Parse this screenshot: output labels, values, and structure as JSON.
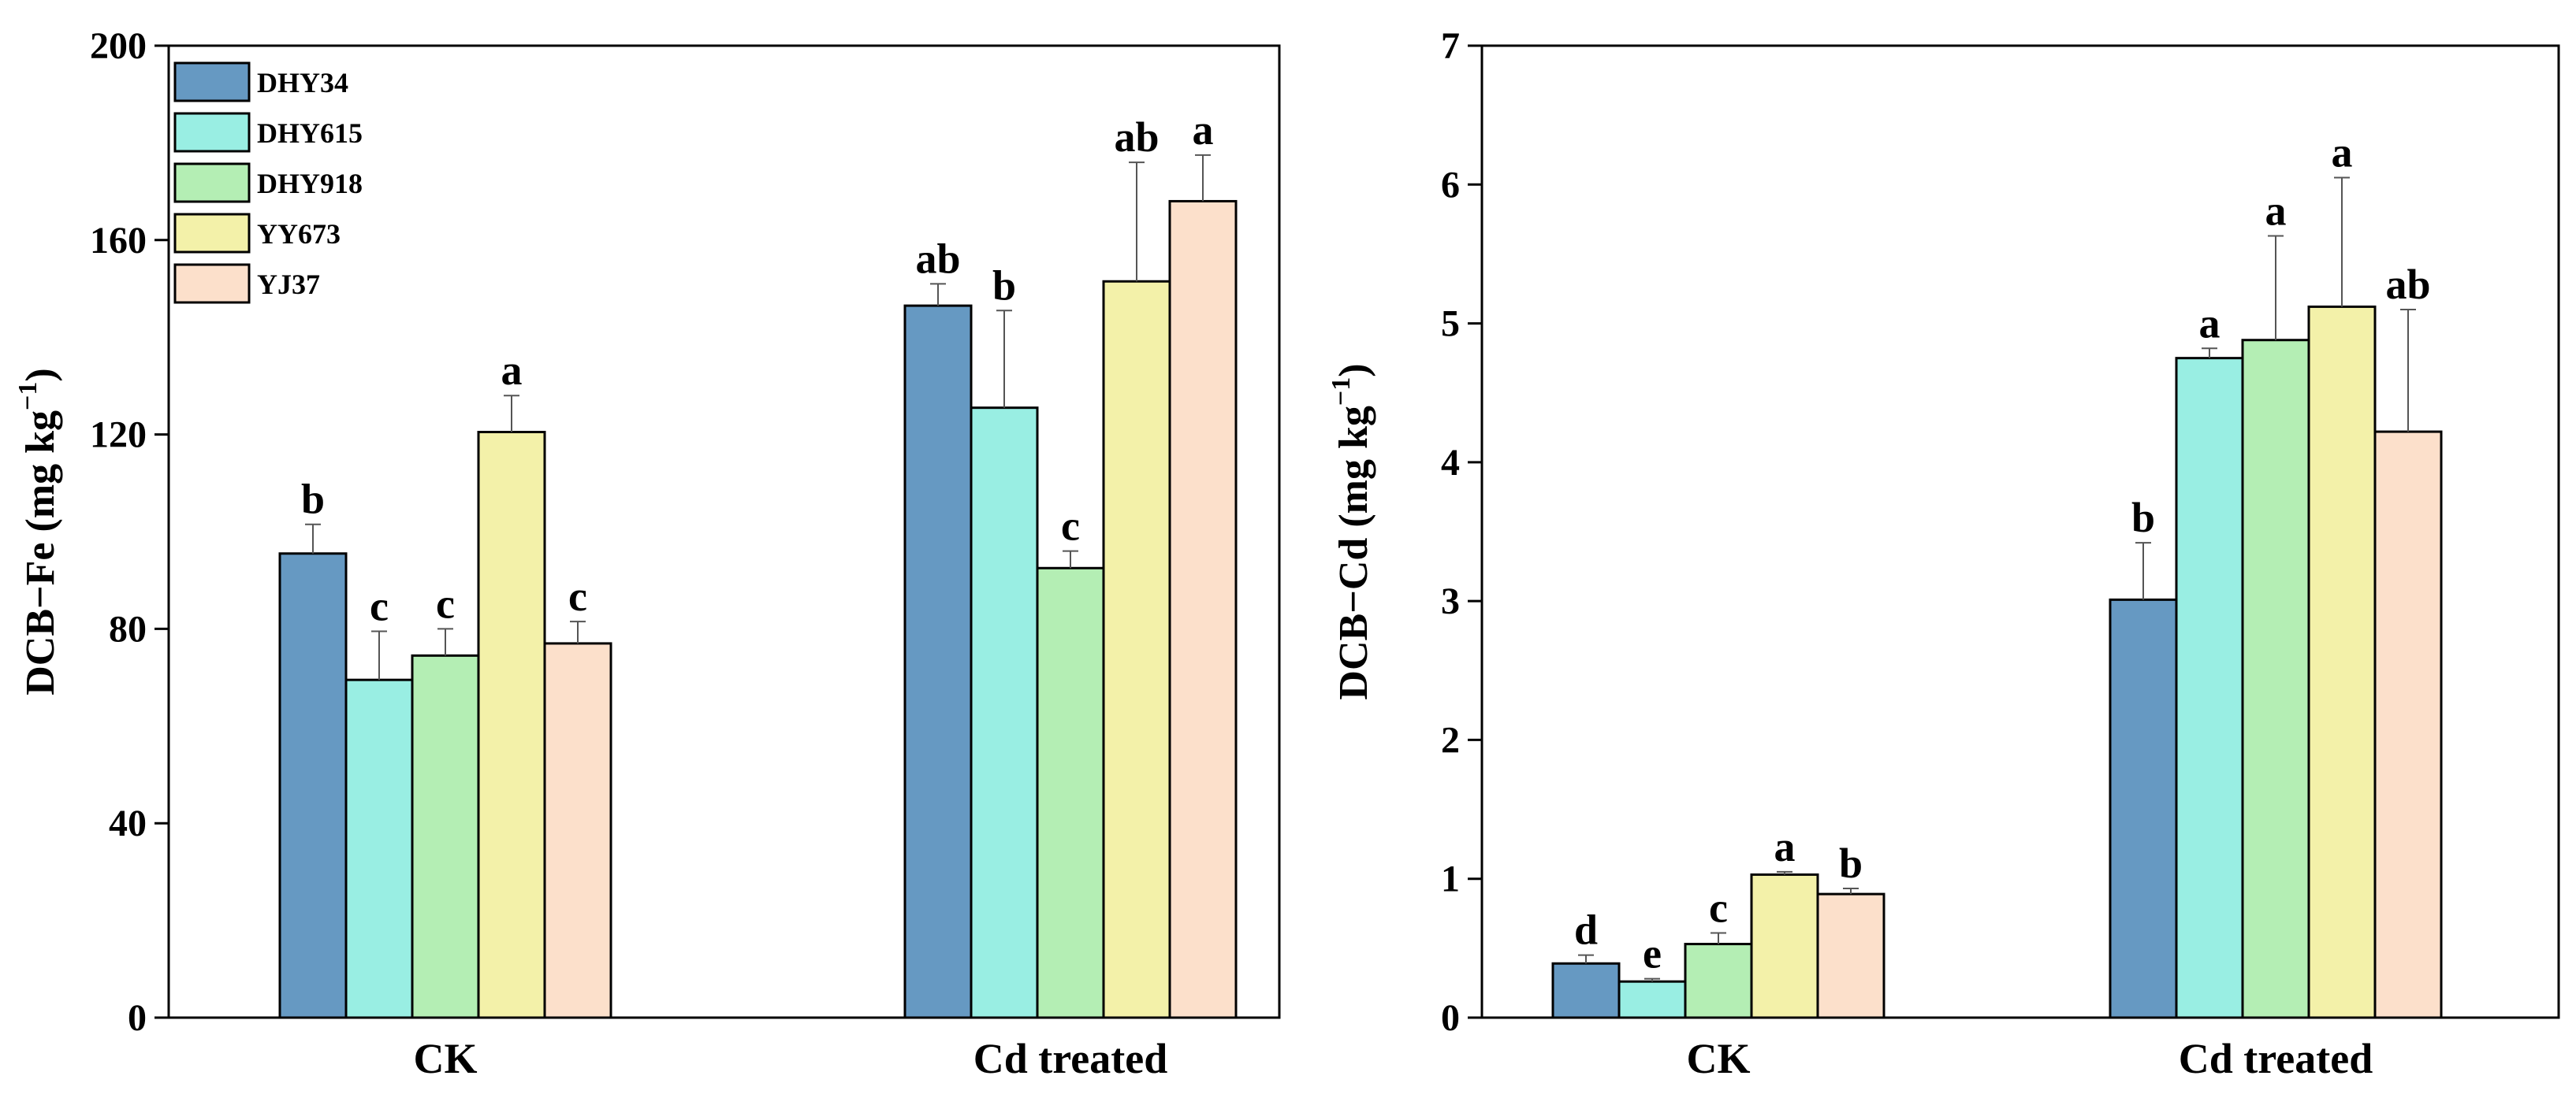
{
  "chart_data": [
    {
      "type": "bar",
      "ylabel_main": "DCB−Fe (mg kg",
      "ylabel_sup": "−1",
      "ylabel_close": ")",
      "xlabel": "",
      "ylim": [
        0,
        200
      ],
      "yticks": [
        "0",
        "40",
        "80",
        "120",
        "160",
        "200"
      ],
      "categories": [
        "CK",
        "Cd treated"
      ],
      "legend_position": "top-left",
      "series": [
        {
          "name": "DHY34",
          "color": "#6699c2",
          "values": [
            95.5,
            146.5
          ],
          "errors": [
            6.0,
            4.5
          ],
          "labels": [
            "b",
            "ab"
          ]
        },
        {
          "name": "DHY615",
          "color": "#99eee3",
          "values": [
            69.5,
            125.5
          ],
          "errors": [
            10.0,
            20.0
          ],
          "labels": [
            "c",
            "b"
          ]
        },
        {
          "name": "DHY918",
          "color": "#b4eeb4",
          "values": [
            74.5,
            92.5
          ],
          "errors": [
            5.5,
            3.5
          ],
          "labels": [
            "c",
            "c"
          ]
        },
        {
          "name": "YY673",
          "color": "#f3f1a9",
          "values": [
            120.5,
            151.5
          ],
          "errors": [
            7.5,
            24.5
          ],
          "labels": [
            "a",
            "ab"
          ]
        },
        {
          "name": "YJ37",
          "color": "#fce0cb",
          "values": [
            77.0,
            168.0
          ],
          "errors": [
            4.5,
            9.5
          ],
          "labels": [
            "c",
            "a"
          ]
        }
      ]
    },
    {
      "type": "bar",
      "ylabel_main": "DCB−Cd (mg kg",
      "ylabel_sup": "−1",
      "ylabel_close": ")",
      "xlabel": "",
      "ylim": [
        0,
        7
      ],
      "yticks": [
        "0",
        "1",
        "2",
        "3",
        "4",
        "5",
        "6",
        "7"
      ],
      "categories": [
        "CK",
        "Cd treated"
      ],
      "series": [
        {
          "name": "DHY34",
          "color": "#6699c2",
          "values": [
            0.39,
            3.01
          ],
          "errors": [
            0.06,
            0.41
          ],
          "labels": [
            "d",
            "b"
          ]
        },
        {
          "name": "DHY615",
          "color": "#99eee3",
          "values": [
            0.26,
            4.75
          ],
          "errors": [
            0.02,
            0.07
          ],
          "labels": [
            "e",
            "a"
          ]
        },
        {
          "name": "DHY918",
          "color": "#b4eeb4",
          "values": [
            0.53,
            4.88
          ],
          "errors": [
            0.08,
            0.75
          ],
          "labels": [
            "c",
            "a"
          ]
        },
        {
          "name": "YY673",
          "color": "#f3f1a9",
          "values": [
            1.03,
            5.12
          ],
          "errors": [
            0.02,
            0.93
          ],
          "labels": [
            "a",
            "a"
          ]
        },
        {
          "name": "YJ37",
          "color": "#fce0cb",
          "values": [
            0.89,
            4.22
          ],
          "errors": [
            0.04,
            0.88
          ],
          "labels": [
            "b",
            "ab"
          ]
        }
      ]
    }
  ]
}
